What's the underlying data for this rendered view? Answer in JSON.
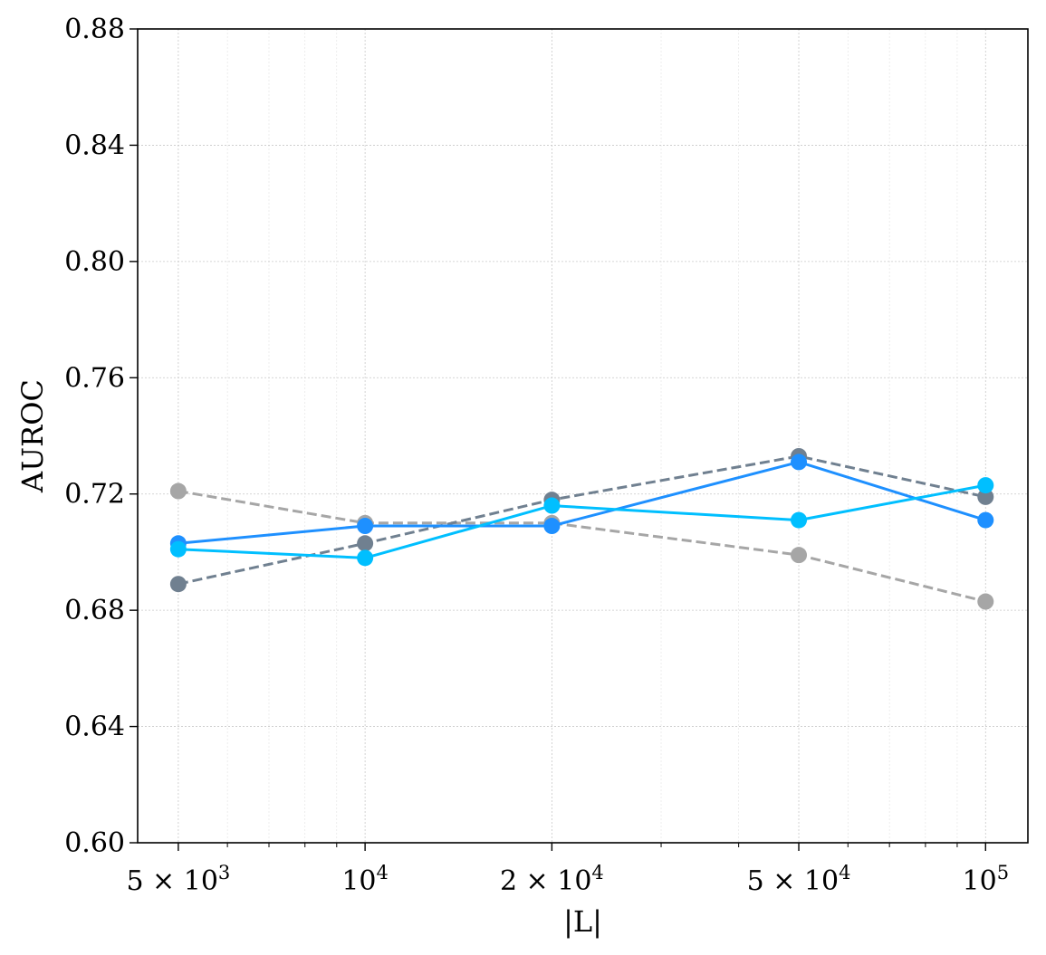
{
  "chart_data": {
    "type": "line",
    "title": "",
    "xlabel": "|L|",
    "ylabel": "AUROC",
    "xscale": "log",
    "x": [
      5000,
      10000,
      20000,
      50000,
      100000
    ],
    "xlim": [
      4300,
      117000
    ],
    "ylim": [
      0.6,
      0.88
    ],
    "xticks": [
      {
        "value": 5000,
        "base": "5 × 10",
        "exp": "3"
      },
      {
        "value": 10000,
        "base": "10",
        "exp": "4"
      },
      {
        "value": 20000,
        "base": "2 × 10",
        "exp": "4"
      },
      {
        "value": 50000,
        "base": "5 × 10",
        "exp": "4"
      },
      {
        "value": 100000,
        "base": "10",
        "exp": "5"
      }
    ],
    "yticks": [
      {
        "value": 0.6,
        "label": "0.60"
      },
      {
        "value": 0.64,
        "label": "0.64"
      },
      {
        "value": 0.68,
        "label": "0.68"
      },
      {
        "value": 0.72,
        "label": "0.72"
      },
      {
        "value": 0.76,
        "label": "0.76"
      },
      {
        "value": 0.8,
        "label": "0.80"
      },
      {
        "value": 0.84,
        "label": "0.84"
      },
      {
        "value": 0.88,
        "label": "0.88"
      }
    ],
    "grid": true,
    "series": [
      {
        "name": "series-light-gray-dashed",
        "color": "#a6a6a6",
        "dashed": true,
        "values": [
          0.721,
          0.71,
          0.71,
          0.699,
          0.683
        ]
      },
      {
        "name": "series-slate-dashed",
        "color": "#708090",
        "dashed": true,
        "values": [
          0.689,
          0.703,
          0.718,
          0.733,
          0.719
        ]
      },
      {
        "name": "series-dodger-blue",
        "color": "#1e90ff",
        "dashed": false,
        "values": [
          0.703,
          0.709,
          0.709,
          0.731,
          0.711
        ]
      },
      {
        "name": "series-deep-sky-blue",
        "color": "#00bfff",
        "dashed": false,
        "values": [
          0.701,
          0.698,
          0.716,
          0.711,
          0.723
        ]
      }
    ]
  }
}
